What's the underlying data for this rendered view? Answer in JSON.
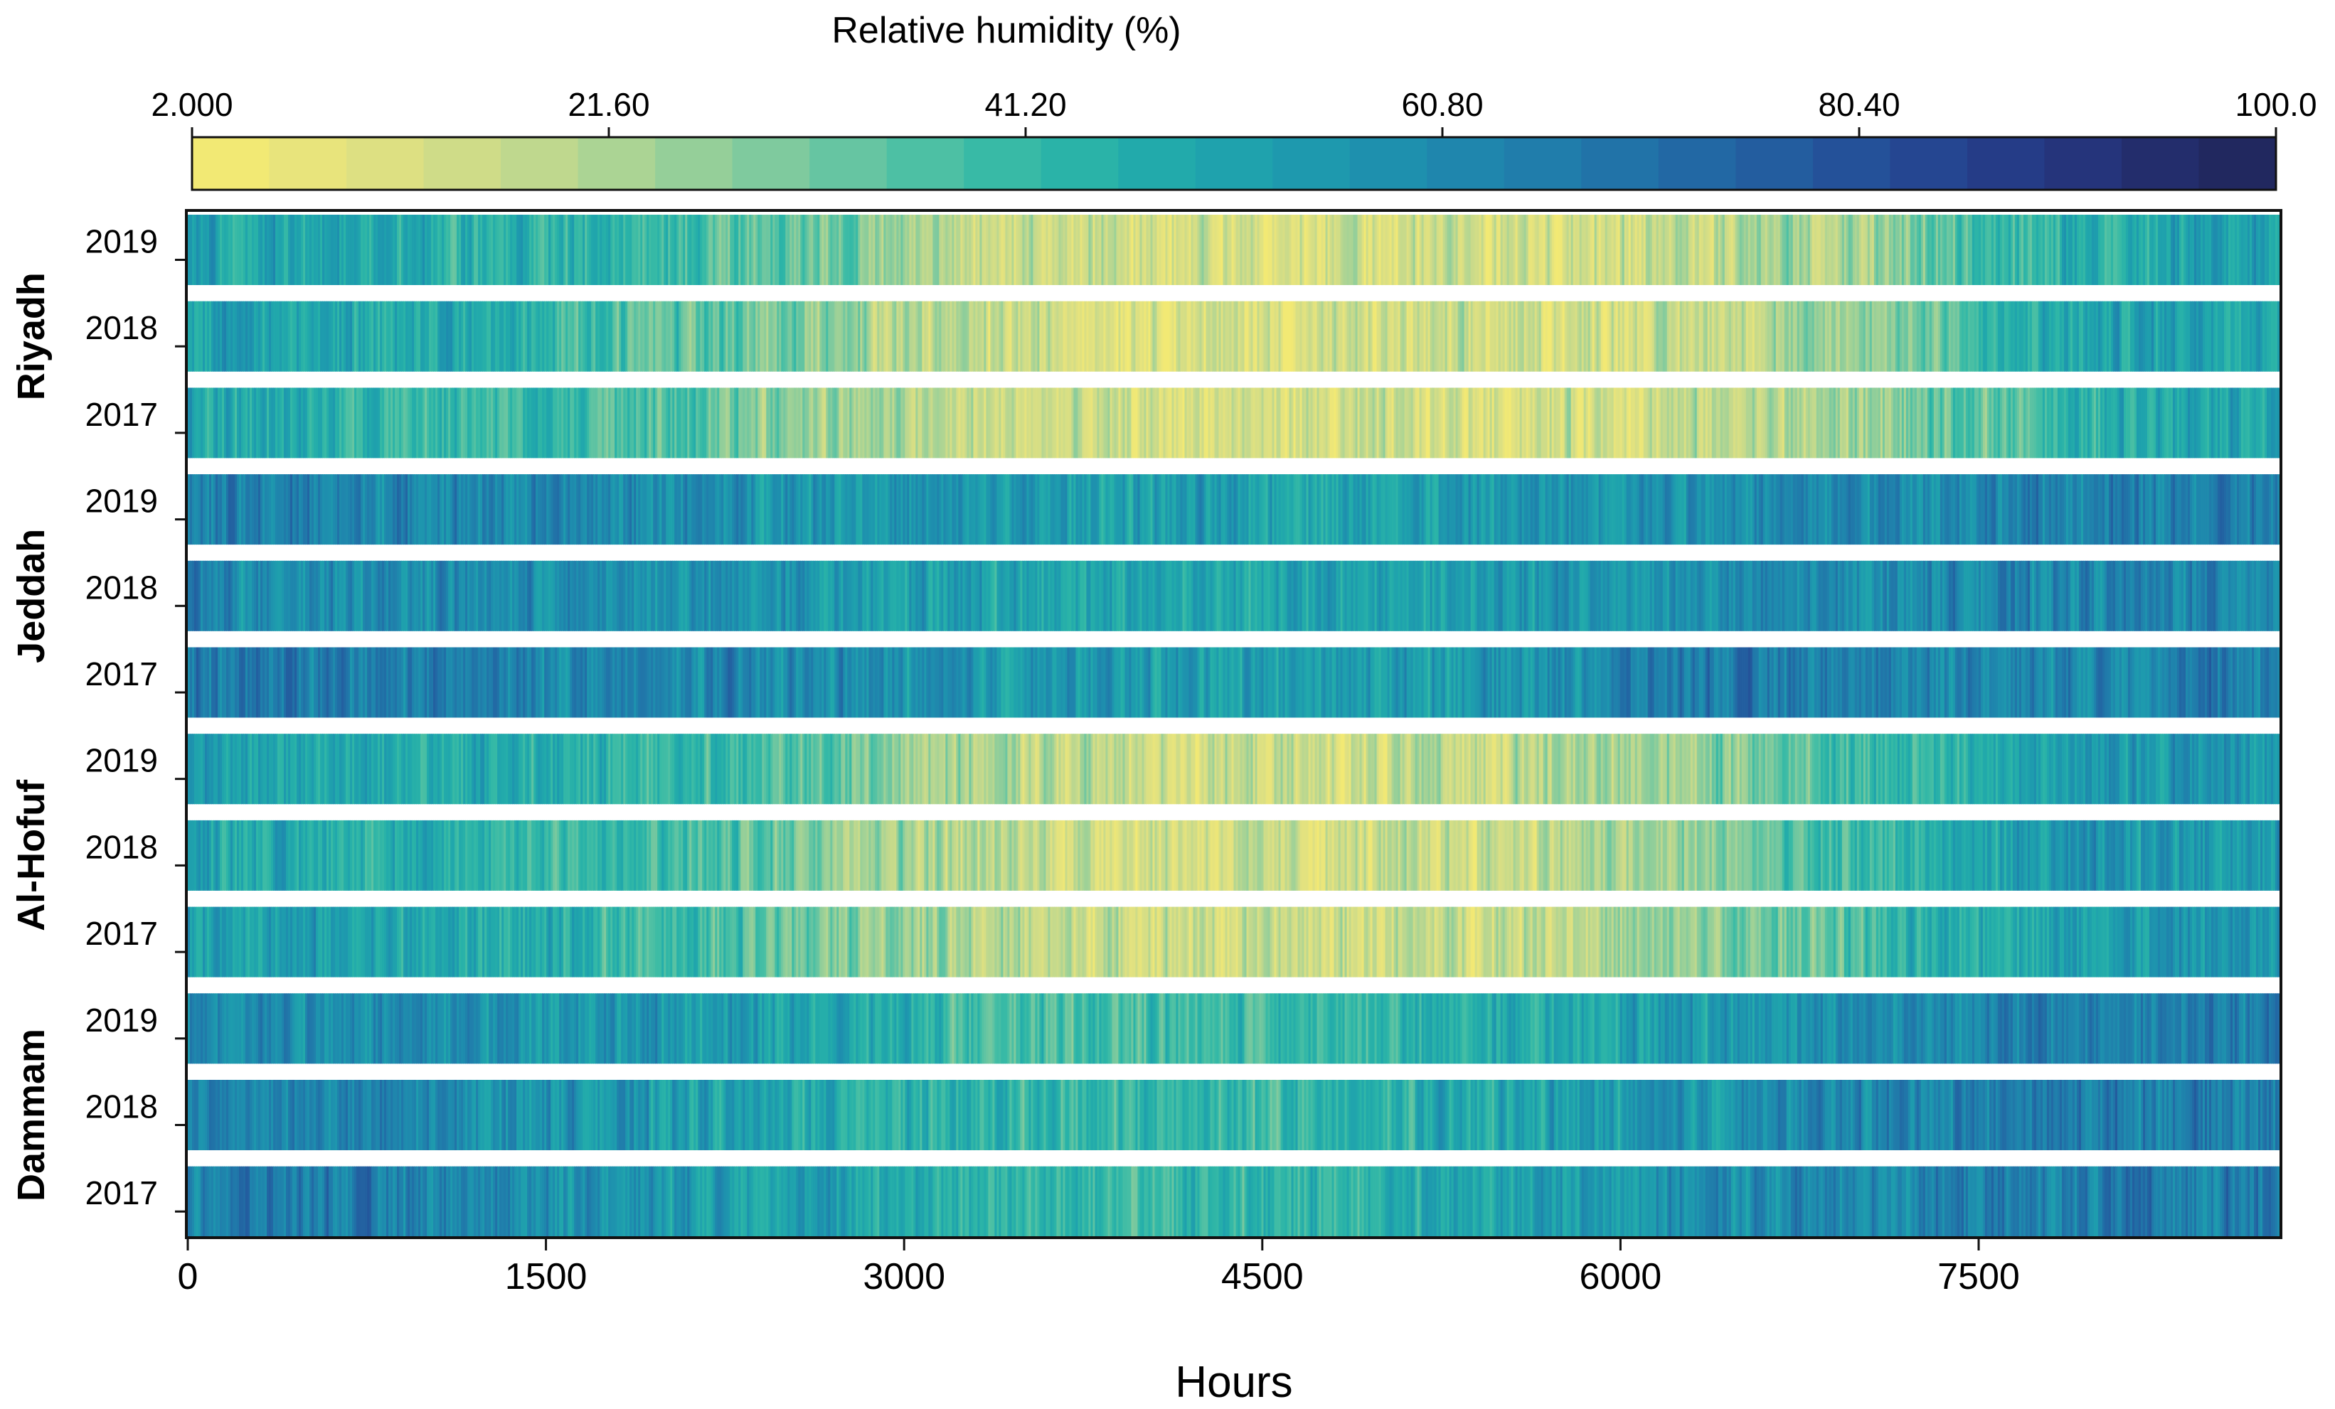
{
  "chart_data": {
    "type": "heatmap",
    "colorbar": {
      "title": "Relative humidity (%)",
      "min": 2.0,
      "max": 100.0,
      "tick_values": [
        2.0,
        21.6,
        41.2,
        60.8,
        80.4,
        100.0
      ],
      "tick_labels": [
        "2.000",
        "21.60",
        "41.20",
        "60.80",
        "80.40",
        "100.0"
      ],
      "colors": [
        "#f2e974",
        "#e8e47c",
        "#dde082",
        "#cfdc88",
        "#bfd88e",
        "#abd494",
        "#95cf99",
        "#7fca9e",
        "#66c5a2",
        "#4dc0a4",
        "#38baa6",
        "#2ab3a8",
        "#22aaab",
        "#1fa2ad",
        "#1e99ae",
        "#1e90ae",
        "#1f86ad",
        "#207dab",
        "#2173a8",
        "#2268a4",
        "#235d9f",
        "#245199",
        "#254691",
        "#253c87",
        "#25347b",
        "#232d6c",
        "#21285f"
      ],
      "orientation": "horizontal",
      "placement": "top"
    },
    "x_axis": {
      "label": "Hours",
      "range": [
        0,
        8760
      ],
      "ticks": [
        0,
        1500,
        3000,
        4500,
        6000,
        7500
      ],
      "tick_labels": [
        "0",
        "1500",
        "3000",
        "4500",
        "6000",
        "7500"
      ]
    },
    "groups": [
      {
        "city": "Riyadh",
        "years": [
          "2019",
          "2018",
          "2017"
        ],
        "seasonal_rh": {
          "2019": [
            48,
            45,
            41,
            32,
            16,
            13,
            12,
            13,
            16,
            24,
            40,
            52
          ],
          "2018": [
            50,
            46,
            38,
            29,
            15,
            12,
            11,
            12,
            15,
            23,
            44,
            55
          ],
          "2017": [
            47,
            42,
            37,
            27,
            14,
            11,
            11,
            12,
            14,
            22,
            38,
            53
          ]
        }
      },
      {
        "city": "Jeddah",
        "years": [
          "2019",
          "2018",
          "2017"
        ],
        "seasonal_rh": {
          "2019": [
            64,
            62,
            60,
            58,
            54,
            52,
            50,
            54,
            60,
            62,
            63,
            64
          ],
          "2018": [
            62,
            60,
            58,
            56,
            52,
            50,
            50,
            53,
            58,
            60,
            62,
            63
          ],
          "2017": [
            66,
            64,
            62,
            60,
            56,
            54,
            52,
            56,
            66,
            64,
            63,
            65
          ]
        }
      },
      {
        "city": "Al-Hofuf",
        "years": [
          "2019",
          "2018",
          "2017"
        ],
        "seasonal_rh": {
          "2019": [
            50,
            47,
            44,
            36,
            20,
            15,
            13,
            17,
            24,
            38,
            50,
            58
          ],
          "2018": [
            48,
            44,
            40,
            32,
            18,
            14,
            12,
            16,
            22,
            38,
            52,
            57
          ],
          "2017": [
            52,
            48,
            42,
            34,
            19,
            14,
            13,
            17,
            23,
            36,
            50,
            56
          ]
        }
      },
      {
        "city": "Dammam",
        "years": [
          "2019",
          "2018",
          "2017"
        ],
        "seasonal_rh": {
          "2019": [
            62,
            60,
            56,
            50,
            40,
            38,
            40,
            46,
            54,
            60,
            64,
            65
          ],
          "2018": [
            64,
            60,
            55,
            48,
            42,
            40,
            42,
            48,
            56,
            62,
            66,
            66
          ],
          "2017": [
            66,
            62,
            58,
            52,
            44,
            40,
            43,
            50,
            58,
            62,
            64,
            66
          ]
        }
      }
    ]
  }
}
